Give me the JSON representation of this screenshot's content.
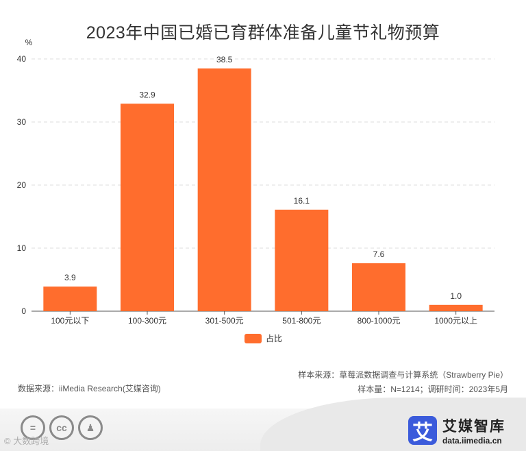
{
  "chart_data": {
    "type": "bar",
    "title": "2023年中国已婚已育群体准备儿童节礼物预算",
    "ylabel": "%",
    "xlabel": "",
    "ylim": [
      0,
      40
    ],
    "yticks": [
      0,
      10,
      20,
      30,
      40
    ],
    "categories": [
      "100元以下",
      "100-300元",
      "301-500元",
      "501-800元",
      "800-1000元",
      "1000元以上"
    ],
    "series": [
      {
        "name": "占比",
        "values": [
          3.9,
          32.9,
          38.5,
          16.1,
          7.6,
          1.0
        ],
        "color": "#FF6D2D"
      }
    ],
    "grid": true,
    "legend": "bottom-center"
  },
  "source": {
    "left": "数据来源：iiMedia Research(艾媒咨询)",
    "sample_source": "样本来源：草莓派数据调查与计算系统（Strawberry Pie）",
    "sample_size": "样本量：N=1214；调研时间：2023年5月"
  },
  "footer": {
    "license_icons": [
      "equals-icon",
      "cc-icon",
      "person-icon"
    ],
    "license_glyphs": [
      "=",
      "cc",
      "♟"
    ],
    "watermark": "© 大数跨境",
    "brand_logo_char": "艾",
    "brand_name": "艾媒智库",
    "brand_url": "data.iimedia.cn"
  }
}
